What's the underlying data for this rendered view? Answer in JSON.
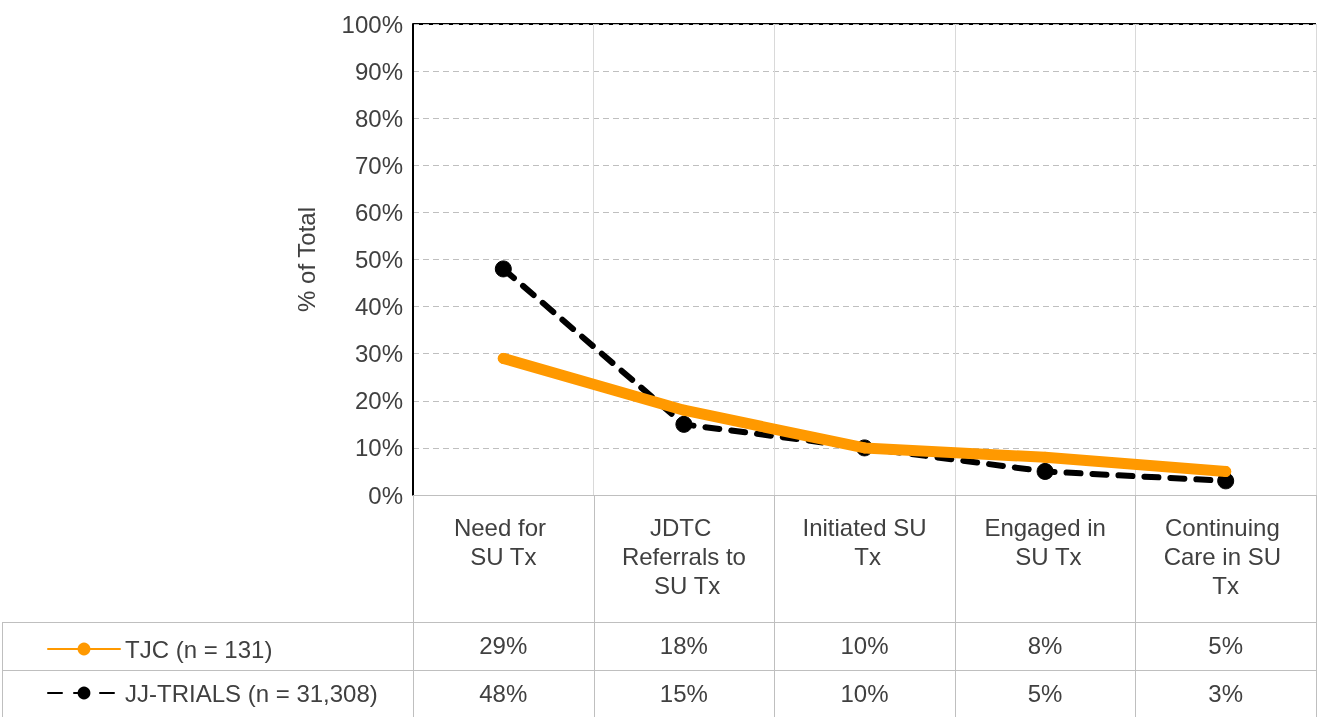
{
  "chart_data": {
    "type": "line",
    "ylabel": "% of Total",
    "categories": [
      "Need for SU Tx",
      "JDTC Referrals to SU Tx",
      "Initiated SU Tx",
      "Engaged in SU Tx",
      "Continuing Care in SU Tx"
    ],
    "series": [
      {
        "name": "TJC (n = 131)",
        "color": "#ff9900",
        "values": [
          29,
          18,
          10,
          8,
          5
        ],
        "value_labels": [
          "29%",
          "18%",
          "10%",
          "8%",
          "5%"
        ],
        "line_style": "solid"
      },
      {
        "name": "JJ-TRIALS (n = 31,308)",
        "color": "#000000",
        "values": [
          48,
          15,
          10,
          5,
          3
        ],
        "value_labels": [
          "48%",
          "15%",
          "10%",
          "5%",
          "3%"
        ],
        "line_style": "dashed"
      }
    ],
    "ylim": [
      0,
      100
    ],
    "yticks": [
      {
        "value": 0,
        "label": "0%"
      },
      {
        "value": 10,
        "label": "10%"
      },
      {
        "value": 20,
        "label": "20%"
      },
      {
        "value": 30,
        "label": "30%"
      },
      {
        "value": 40,
        "label": "40%"
      },
      {
        "value": 50,
        "label": "50%"
      },
      {
        "value": 60,
        "label": "60%"
      },
      {
        "value": 70,
        "label": "70%"
      },
      {
        "value": 80,
        "label": "80%"
      },
      {
        "value": 90,
        "label": "90%"
      },
      {
        "value": 100,
        "label": "100%"
      }
    ],
    "grid": true,
    "legend": "bottom left",
    "marker": "circle"
  }
}
